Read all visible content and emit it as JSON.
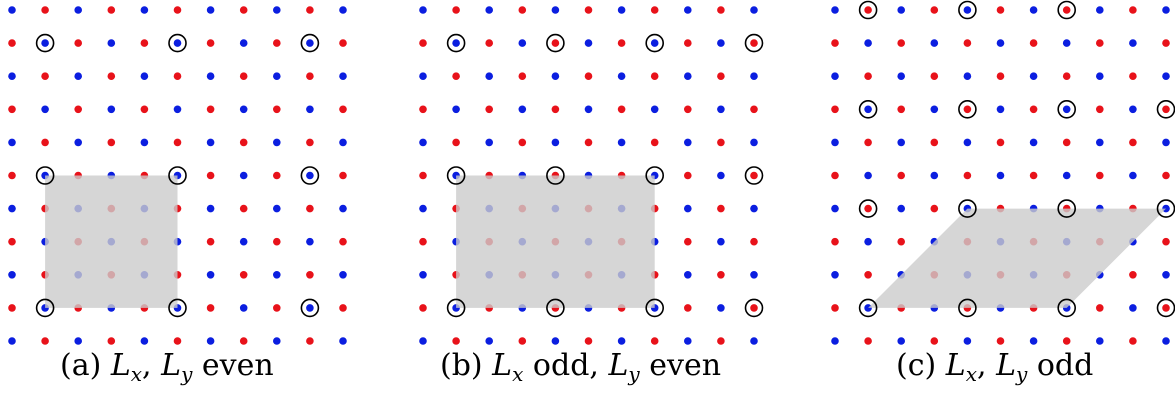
{
  "colors": {
    "red": "#e8121a",
    "blue": "#0b1ee0",
    "shade": "#cccccc"
  },
  "lattice": {
    "rows": 11,
    "cols": 11,
    "pattern": "checkerboard"
  },
  "panels": [
    {
      "id": "a",
      "caption": {
        "tag": "(a)",
        "math": "Lx, Ly",
        "rest": "even"
      },
      "caption_parts": {
        "tag": "(a)",
        "sym1": "L",
        "sub1": "x",
        "sep": ",",
        "sym2": "L",
        "sub2": "y",
        "tail": "even"
      },
      "cell_size_sites": [
        4,
        4
      ],
      "circled_sites": [
        [
          1,
          1
        ],
        [
          1,
          5
        ],
        [
          1,
          9
        ],
        [
          5,
          1
        ],
        [
          5,
          5
        ],
        [
          5,
          9
        ],
        [
          9,
          1
        ],
        [
          9,
          5
        ],
        [
          9,
          9
        ]
      ],
      "shaded_cell": "rectangle"
    },
    {
      "id": "b",
      "caption": {
        "tag": "(b)",
        "math": "Lx",
        "rest": "odd, Ly even"
      },
      "caption_parts": {
        "tag": "(b)",
        "sym1": "L",
        "sub1": "x",
        "mid": "odd,",
        "sym2": "L",
        "sub2": "y",
        "tail": "even"
      },
      "cell_size_sites": [
        6,
        4
      ],
      "circled_sites": [
        [
          1,
          1
        ],
        [
          1,
          4
        ],
        [
          1,
          7
        ],
        [
          1,
          10
        ],
        [
          5,
          1
        ],
        [
          5,
          4
        ],
        [
          5,
          7
        ],
        [
          5,
          10
        ],
        [
          9,
          1
        ],
        [
          9,
          4
        ],
        [
          9,
          7
        ],
        [
          9,
          10
        ]
      ],
      "shaded_cell": "rectangle"
    },
    {
      "id": "c",
      "caption": {
        "tag": "(c)",
        "math": "Lx, Ly",
        "rest": "odd"
      },
      "caption_parts": {
        "tag": "(c)",
        "sym1": "L",
        "sub1": "x",
        "sep": ",",
        "sym2": "L",
        "sub2": "y",
        "tail": "odd"
      },
      "cell_size_sites": [
        6,
        3
      ],
      "circled_sites": [
        [
          0,
          1
        ],
        [
          0,
          4
        ],
        [
          0,
          7
        ],
        [
          3,
          1
        ],
        [
          3,
          4
        ],
        [
          3,
          7
        ],
        [
          3,
          10
        ],
        [
          6,
          1
        ],
        [
          6,
          4
        ],
        [
          6,
          7
        ],
        [
          6,
          10
        ],
        [
          9,
          1
        ],
        [
          9,
          4
        ],
        [
          9,
          7
        ],
        [
          9,
          10
        ]
      ],
      "shaded_cell": "parallelogram"
    }
  ]
}
